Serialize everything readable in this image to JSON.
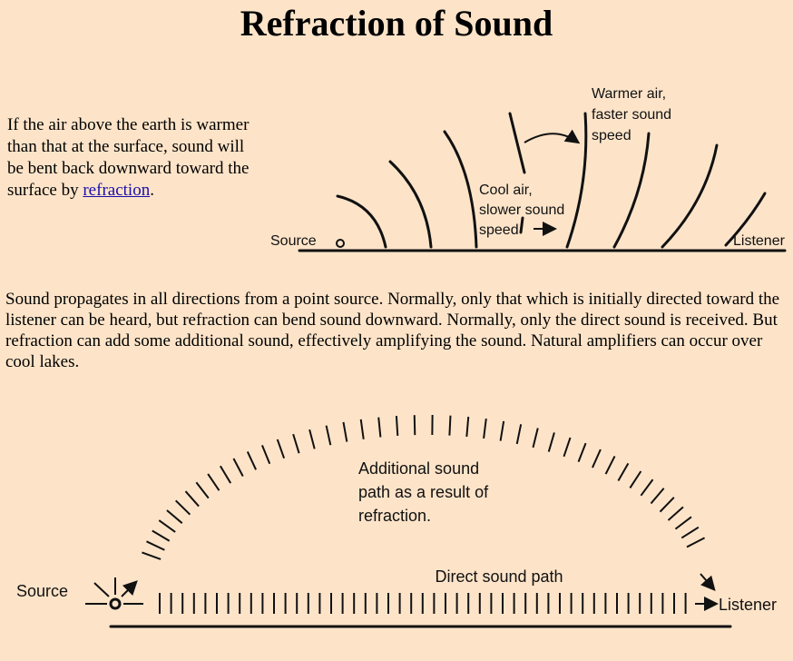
{
  "header": {
    "title": "Refraction of Sound"
  },
  "intro": {
    "text": "If the air above the earth is warmer than that at the surface, sound will be bent back downward toward the surface by ",
    "link": "refraction",
    "end": "."
  },
  "diagram_top": {
    "warm": [
      "Warmer air,",
      "faster sound",
      "speed"
    ],
    "cool": [
      "Cool air,",
      "slower sound",
      "speed"
    ],
    "source": "Source",
    "listener": "Listener"
  },
  "body": {
    "text": "Sound propagates in all directions from a point source. Normally, only that which is initially directed toward the listener can be heard, but refraction can bend sound downward. Normally, only the direct sound is received. But refraction can add some additional sound, effectively amplifying the sound. Natural amplifiers can occur over cool lakes."
  },
  "diagram_bottom": {
    "additional": [
      "Additional sound",
      "path as a result of",
      "refraction."
    ],
    "direct": "Direct sound path",
    "source": "Source",
    "listener": "Listener"
  }
}
